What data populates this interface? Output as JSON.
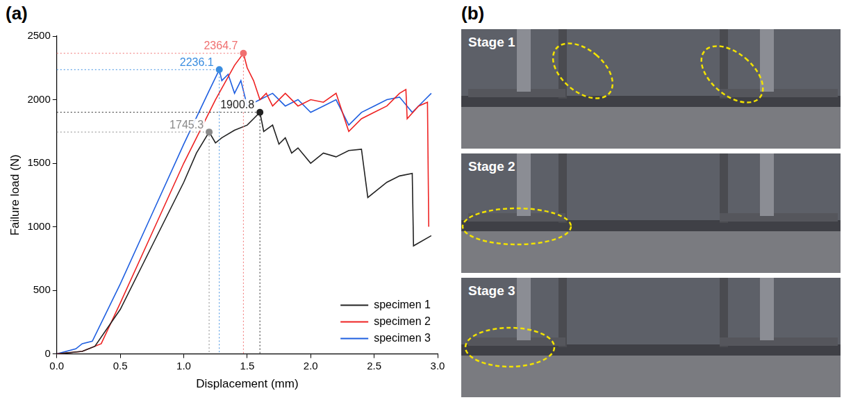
{
  "chart_data": {
    "type": "line",
    "panel_label": "(a)",
    "x_label": "Displacement (mm)",
    "y_label": "Failure load (N)",
    "xlim": [
      0,
      3
    ],
    "xticks": [
      {
        "value": 0,
        "label": "0.0"
      },
      {
        "value": 0.5,
        "label": "0.5"
      },
      {
        "value": 1,
        "label": "1.0"
      },
      {
        "value": 1.5,
        "label": "1.5"
      },
      {
        "value": 2,
        "label": "2.0"
      },
      {
        "value": 2.5,
        "label": "2.5"
      },
      {
        "value": 3,
        "label": "3.0"
      }
    ],
    "ylim": [
      0,
      2500
    ],
    "yticks": [
      0,
      500,
      1000,
      1500,
      2000,
      2500
    ],
    "grid": false,
    "legend": "lower right",
    "series": [
      {
        "name": "specimen 1",
        "color": "#222222",
        "x": [
          0,
          0.2,
          0.3,
          0.5,
          0.75,
          1.0,
          1.1,
          1.2,
          1.25,
          1.3,
          1.4,
          1.5,
          1.55,
          1.6,
          1.63,
          1.7,
          1.75,
          1.8,
          1.85,
          1.9,
          2.0,
          2.1,
          2.2,
          2.3,
          2.4,
          2.45,
          2.6,
          2.7,
          2.8,
          2.81,
          2.95
        ],
        "values": [
          0,
          20,
          60,
          350,
          850,
          1350,
          1580,
          1745.3,
          1660,
          1700,
          1760,
          1800,
          1850,
          1900.8,
          1750,
          1800,
          1650,
          1700,
          1580,
          1620,
          1500,
          1580,
          1550,
          1600,
          1610,
          1230,
          1350,
          1400,
          1420,
          850,
          930
        ]
      },
      {
        "name": "specimen 2",
        "color": "#ee2222",
        "x": [
          0,
          0.2,
          0.35,
          0.5,
          0.75,
          1.0,
          1.25,
          1.4,
          1.47,
          1.5,
          1.55,
          1.6,
          1.65,
          1.7,
          1.8,
          1.9,
          2.0,
          2.1,
          2.2,
          2.3,
          2.4,
          2.5,
          2.6,
          2.7,
          2.75,
          2.76,
          2.85,
          2.92,
          2.93
        ],
        "values": [
          0,
          20,
          80,
          400,
          950,
          1500,
          2000,
          2270,
          2364.7,
          2250,
          2150,
          2000,
          2050,
          1950,
          2050,
          1950,
          2000,
          1980,
          2050,
          1750,
          1850,
          1900,
          1950,
          2050,
          2080,
          1850,
          1950,
          1980,
          1000
        ]
      },
      {
        "name": "specimen 3",
        "color": "#1f5fe0",
        "x": [
          0,
          0.15,
          0.2,
          0.28,
          0.5,
          0.75,
          1.0,
          1.2,
          1.28,
          1.3,
          1.35,
          1.4,
          1.45,
          1.5,
          1.6,
          1.7,
          1.8,
          1.9,
          2.0,
          2.1,
          2.2,
          2.3,
          2.4,
          2.5,
          2.6,
          2.7,
          2.8,
          2.9,
          2.95
        ],
        "values": [
          0,
          40,
          80,
          100,
          550,
          1100,
          1650,
          2070,
          2236.1,
          2150,
          2200,
          2050,
          2150,
          1950,
          2000,
          2050,
          1950,
          2000,
          1900,
          1950,
          2000,
          1800,
          1900,
          1950,
          2000,
          2020,
          1900,
          2000,
          2050
        ]
      }
    ],
    "annotations": [
      {
        "text": "2364.7",
        "x": 1.47,
        "y": 2364.7,
        "color": "#f07070"
      },
      {
        "text": "2236.1",
        "x": 1.28,
        "y": 2236.1,
        "color": "#3a8de0"
      },
      {
        "text": "1900.8",
        "x": 1.6,
        "y": 1900.8,
        "color": "#222222"
      },
      {
        "text": "1745.3",
        "x": 1.2,
        "y": 1745.3,
        "color": "#8a8a8a"
      }
    ]
  },
  "panel_b": {
    "panel_label": "(b)",
    "stages": [
      "Stage 1",
      "Stage 2",
      "Stage 3"
    ]
  }
}
